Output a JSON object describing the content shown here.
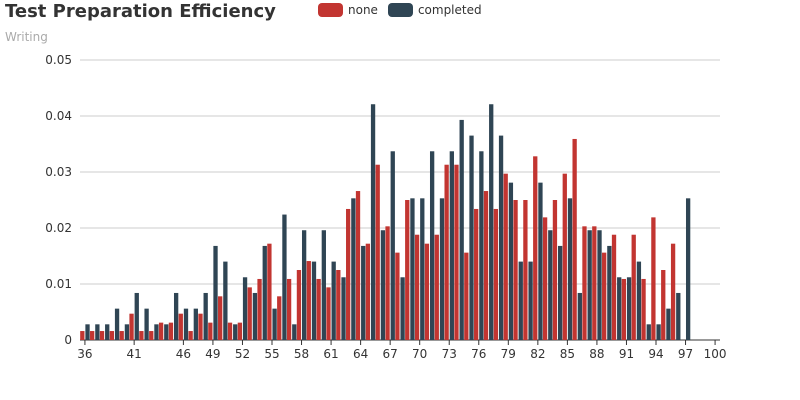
{
  "chart_data": {
    "type": "bar",
    "title": "Test Preparation Efficiency",
    "subtitle": "Writing",
    "xlabel": "",
    "ylabel": "",
    "ylim": [
      0,
      0.05
    ],
    "yticks": [
      "0",
      "0.01",
      "0.02",
      "0.03",
      "0.04",
      "0.05"
    ],
    "grid": true,
    "legend_position": "top",
    "categories": [
      36,
      37,
      38,
      39,
      40,
      41,
      42,
      43,
      44,
      45,
      46,
      47,
      48,
      49,
      50,
      51,
      52,
      53,
      54,
      55,
      56,
      57,
      58,
      59,
      60,
      61,
      62,
      63,
      64,
      65,
      66,
      67,
      68,
      69,
      70,
      71,
      72,
      73,
      74,
      75,
      76,
      77,
      78,
      79,
      80,
      81,
      82,
      83,
      84,
      85,
      86,
      87,
      88,
      89,
      90,
      91,
      92,
      93,
      94,
      95,
      96,
      97,
      98,
      99,
      100
    ],
    "series": [
      {
        "name": "none",
        "color": "#c23531",
        "values": [
          0.0016,
          0.0016,
          0.0016,
          0.0016,
          0.0016,
          0.0047,
          0.0016,
          0.0016,
          0.0031,
          0.0031,
          0.0047,
          0.0016,
          0.0047,
          0.0031,
          0.0078,
          0.0031,
          0.0031,
          0.0094,
          0.0109,
          0.0172,
          0.0078,
          0.0109,
          0.0125,
          0.0141,
          0.0109,
          0.0094,
          0.0125,
          0.0234,
          0.0266,
          0.0172,
          0.0313,
          0.0203,
          0.0156,
          0.025,
          0.0188,
          0.0172,
          0.0188,
          0.0313,
          0.0313,
          0.0156,
          0.0234,
          0.0266,
          0.0234,
          0.0297,
          0.025,
          0.025,
          0.0328,
          0.0219,
          0.025,
          0.0297,
          0.0359,
          0.0203,
          0.0203,
          0.0156,
          0.0188,
          0.0109,
          0.0188,
          0.0109,
          0.0219,
          0.0125,
          0.0172,
          0,
          0,
          0,
          0
        ]
      },
      {
        "name": "completed",
        "color": "#2f4554",
        "values": [
          0.0028,
          0.0028,
          0.0028,
          0.0056,
          0.0028,
          0.0084,
          0.0056,
          0.0028,
          0.0028,
          0.0084,
          0.0056,
          0.0056,
          0.0084,
          0.0168,
          0.014,
          0.0028,
          0.0112,
          0.0084,
          0.0168,
          0.0056,
          0.0224,
          0.0028,
          0.0196,
          0.014,
          0.0196,
          0.014,
          0.0112,
          0.0253,
          0.0168,
          0.0421,
          0.0196,
          0.0337,
          0.0112,
          0.0253,
          0.0253,
          0.0337,
          0.0253,
          0.0337,
          0.0393,
          0.0365,
          0.0337,
          0.0421,
          0.0365,
          0.0281,
          0.014,
          0.014,
          0.0281,
          0.0196,
          0.0168,
          0.0253,
          0.0084,
          0.0196,
          0.0196,
          0.0168,
          0.0112,
          0.0112,
          0.014,
          0.0028,
          0.0028,
          0.0056,
          0.0084,
          0.0253,
          0,
          0,
          0
        ]
      }
    ],
    "xtick_labels": [
      "36",
      "41",
      "46",
      "49",
      "52",
      "55",
      "58",
      "61",
      "64",
      "67",
      "70",
      "73",
      "76",
      "79",
      "82",
      "85",
      "88",
      "91",
      "94",
      "97",
      "100"
    ]
  }
}
